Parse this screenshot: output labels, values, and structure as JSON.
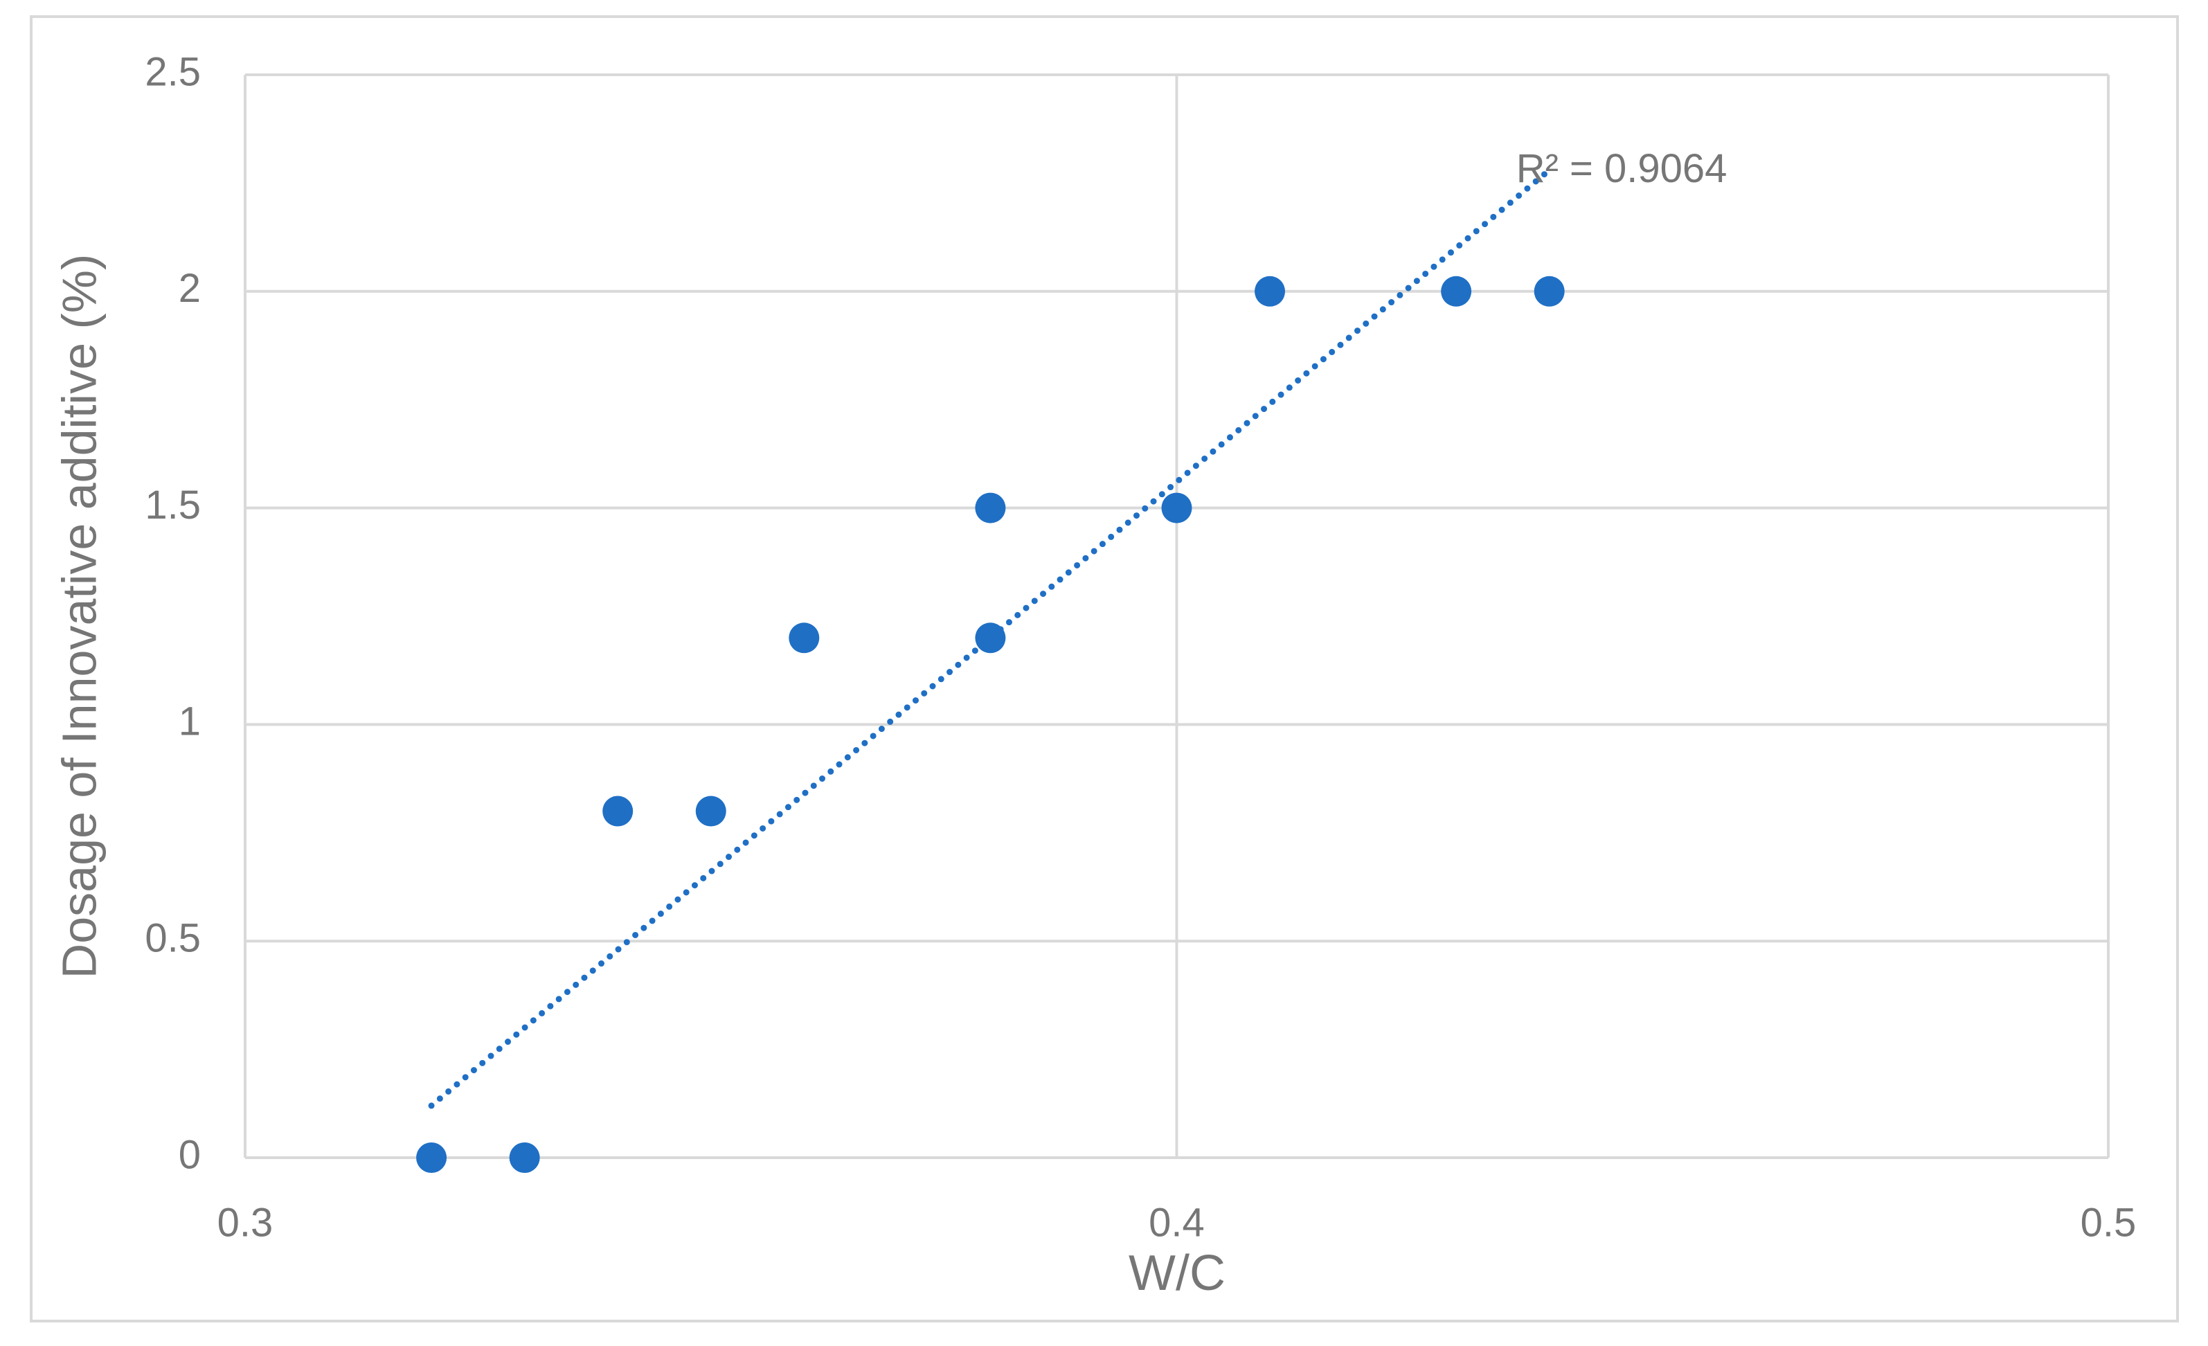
{
  "chart_data": {
    "type": "scatter",
    "x_label": "W/C",
    "y_label": "Dosage of Innovative additive (%)",
    "xlim": [
      0.3,
      0.5
    ],
    "xticks": [
      0.3,
      0.4,
      0.5
    ],
    "ylim": [
      0,
      2.5
    ],
    "yticks": [
      0,
      0.5,
      1,
      1.5,
      2,
      2.5
    ],
    "grid": true,
    "series": [
      {
        "color": "#1f6fc5",
        "x": [
          0.32,
          0.33,
          0.34,
          0.35,
          0.36,
          0.38,
          0.38,
          0.4,
          0.41,
          0.43,
          0.44
        ],
        "values": [
          0,
          0,
          0.8,
          0.8,
          1.2,
          1.5,
          1.2,
          1.5,
          2,
          2,
          2
        ]
      }
    ],
    "trendline": {
      "color": "#1f6fc5",
      "x": [
        0.32,
        0.44
      ],
      "values": [
        0.12,
        2.28
      ],
      "label": "R² = 0.9064"
    }
  }
}
